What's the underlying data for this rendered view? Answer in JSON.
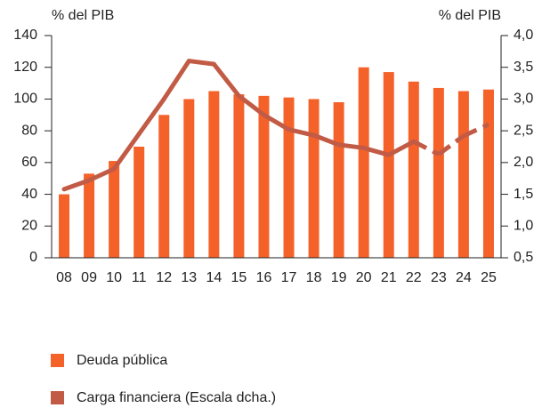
{
  "chart_data": {
    "type": "bar",
    "y_label": "% del PIB",
    "y2_label": "% del PIB",
    "categories": [
      "08",
      "09",
      "10",
      "11",
      "12",
      "13",
      "14",
      "15",
      "16",
      "17",
      "18",
      "19",
      "20",
      "21",
      "22",
      "23",
      "24",
      "25"
    ],
    "series": [
      {
        "name": "Deuda pública",
        "type": "bar",
        "color": "#f4622a",
        "values": [
          40,
          53,
          61,
          70,
          90,
          100,
          105,
          103,
          102,
          101,
          100,
          98,
          120,
          117,
          111,
          107,
          105,
          106
        ]
      },
      {
        "name": "Carga financiera (Escala dcha.)",
        "type": "line",
        "axis": "y2",
        "color": "#c25b45",
        "dash_from": "22",
        "values": [
          1.58,
          1.72,
          1.9,
          2.45,
          3.0,
          3.6,
          3.55,
          3.05,
          2.75,
          2.52,
          2.43,
          2.28,
          2.23,
          2.12,
          2.33,
          2.13,
          2.42,
          2.6
        ]
      }
    ],
    "ylim": [
      0,
      140
    ],
    "yticks": [
      0,
      20,
      40,
      60,
      80,
      100,
      120,
      140
    ],
    "y2lim": [
      0.5,
      4.0
    ],
    "y2ticks": [
      {
        "value": 0.5,
        "label": "0,5"
      },
      {
        "value": 1,
        "label": "1,0"
      },
      {
        "value": 1.5,
        "label": "1,5"
      },
      {
        "value": 2,
        "label": "2,0"
      },
      {
        "value": 2.5,
        "label": "2,5"
      },
      {
        "value": 3,
        "label": "3,0"
      },
      {
        "value": 3.5,
        "label": "3,5"
      },
      {
        "value": 4,
        "label": "4,0"
      }
    ]
  }
}
